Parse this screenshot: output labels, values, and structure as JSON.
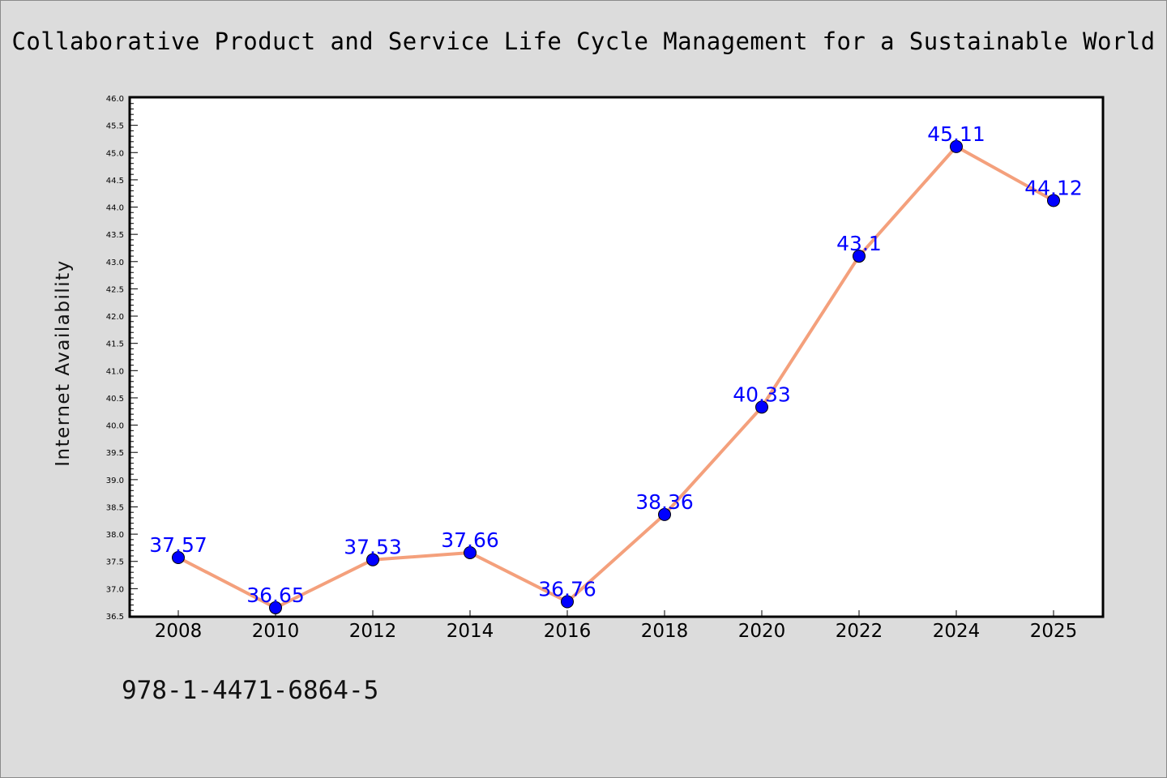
{
  "header": {
    "title": "Collaborative Product and Service Life Cycle Management for a Sustainable World"
  },
  "footer": {
    "isbn": "978-1-4471-6864-5"
  },
  "colors": {
    "background": "#dcdcdc",
    "plot_background": "#ffffff",
    "line": "#f4a07c",
    "marker": "#0000ff",
    "data_label": "#0000ff"
  },
  "chart_data": {
    "type": "line",
    "title": "Collaborative Product and Service Life Cycle Management for a Sustainable World",
    "xlabel": "",
    "ylabel": "Internet Availability",
    "categories": [
      "2008",
      "2010",
      "2012",
      "2014",
      "2016",
      "2018",
      "2020",
      "2022",
      "2024",
      "2025"
    ],
    "series": [
      {
        "values": [
          37.57,
          36.65,
          37.53,
          37.66,
          36.76,
          38.36,
          40.33,
          43.1,
          45.11,
          44.12
        ],
        "labels": [
          "37.57",
          "36.65",
          "37.53",
          "37.66",
          "36.76",
          "38.36",
          "40.33",
          "43.1",
          "45.11",
          "44.12"
        ]
      }
    ],
    "ylim": [
      36.5,
      46.0
    ],
    "yticks": [
      "36.5",
      "37.0",
      "37.5",
      "38.0",
      "38.5",
      "39.0",
      "39.5",
      "40.0",
      "40.5",
      "41.0",
      "41.5",
      "42.0",
      "42.5",
      "43.0",
      "43.5",
      "44.0",
      "44.5",
      "45.0",
      "45.5",
      "46.0"
    ],
    "grid": false,
    "legend": "none"
  }
}
